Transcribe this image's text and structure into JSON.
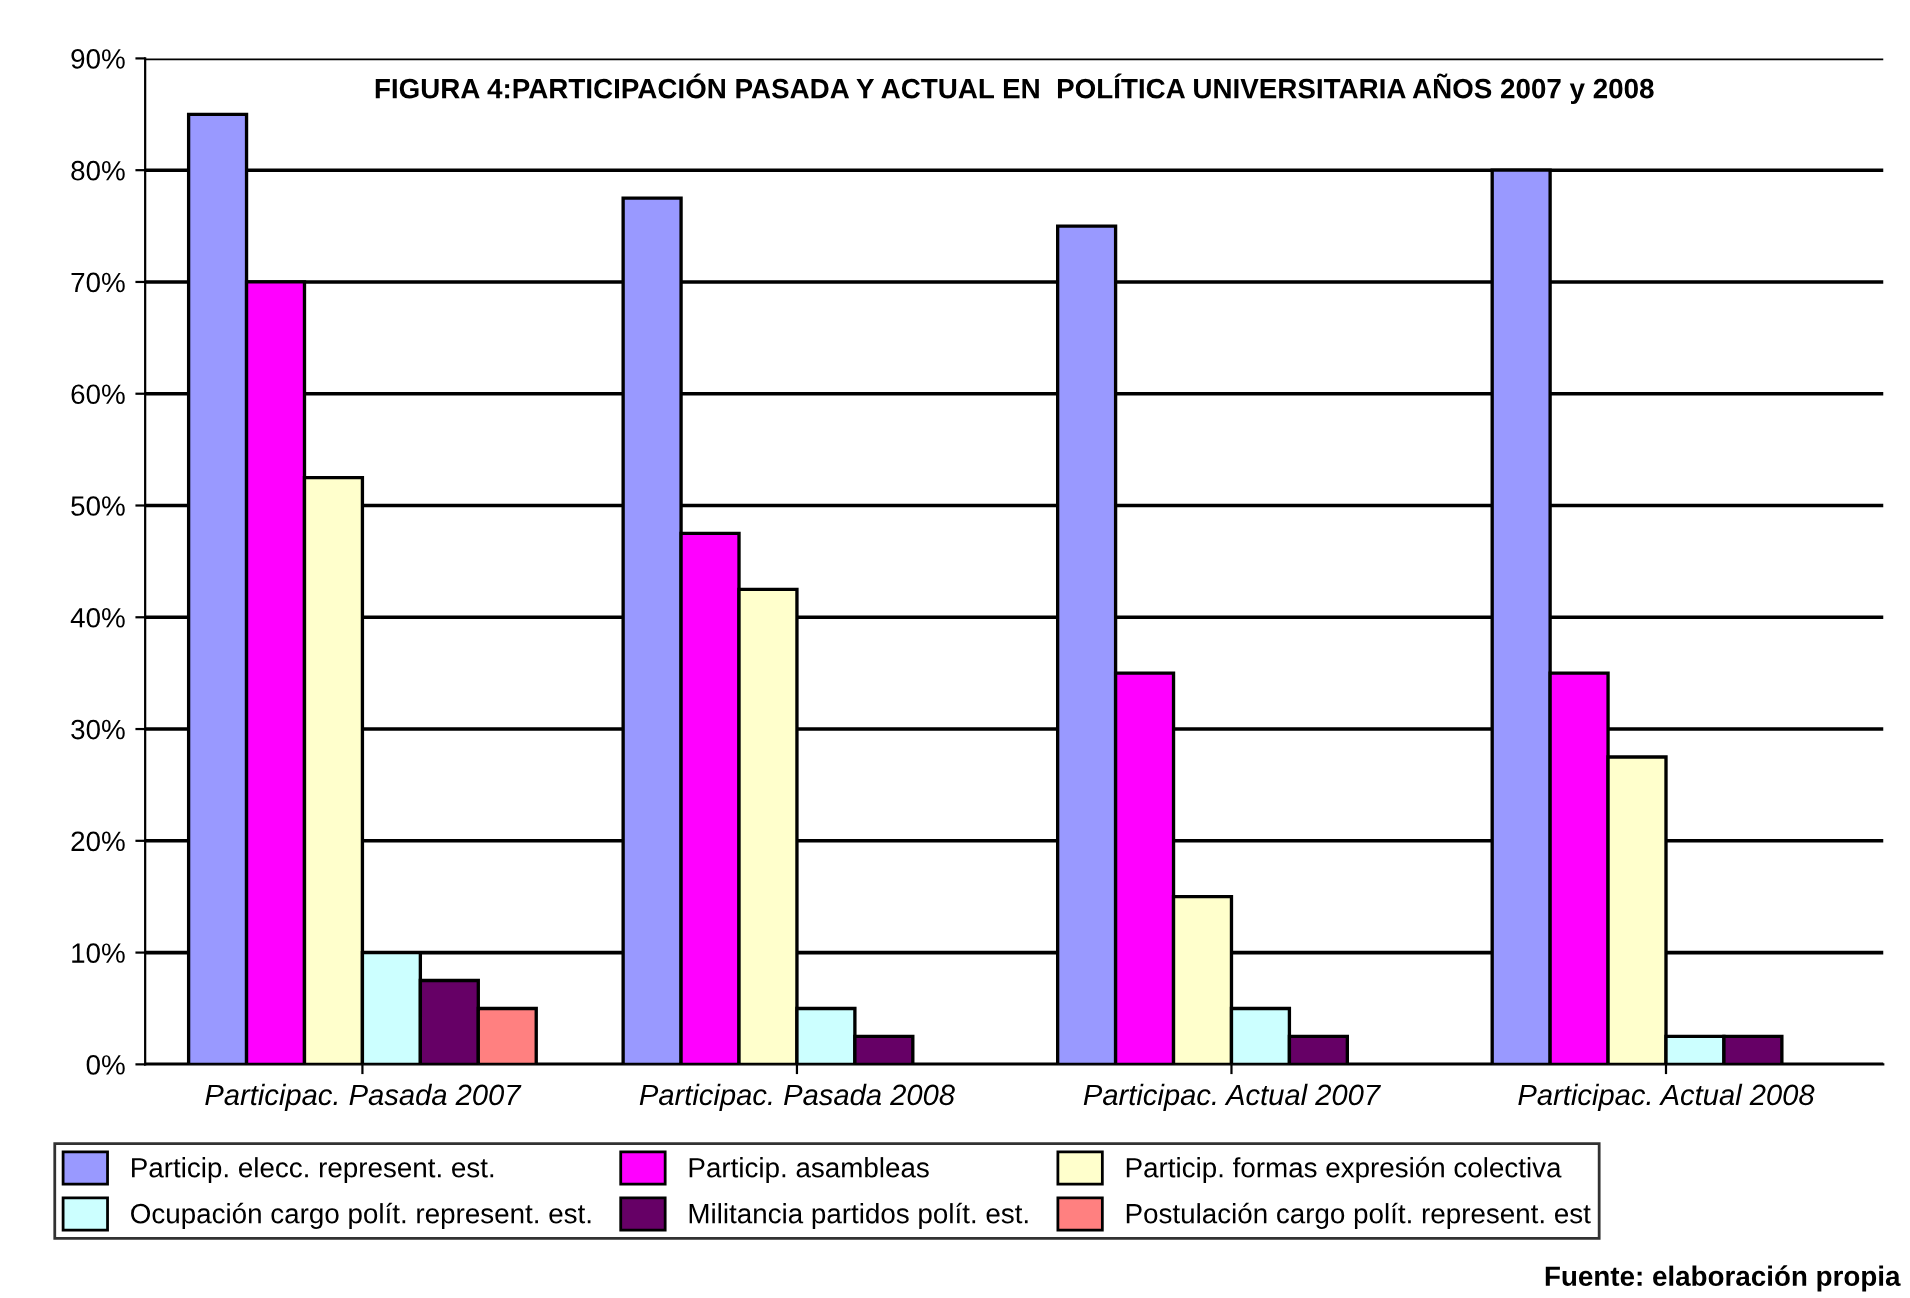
{
  "chart_data": {
    "type": "bar",
    "title": "FIGURA 4:PARTICIPACIÓN PASADA Y ACTUAL EN  POLÍTICA UNIVERSITARIA AÑOS 2007 y 2008",
    "categories": [
      "Participac. Pasada 2007",
      "Participac. Pasada 2008",
      "Participac. Actual 2007",
      "Participac. Actual 2008"
    ],
    "series": [
      {
        "name": "Particip. elecc. represent. est.",
        "color": "#9999ff",
        "values": [
          85,
          77.5,
          75,
          80
        ]
      },
      {
        "name": "Particip. asambleas",
        "color": "#ff00ff",
        "values": [
          70,
          47.5,
          35,
          35
        ]
      },
      {
        "name": "Particip. formas expresión colectiva",
        "color": "#ffffcc",
        "values": [
          52.5,
          42.5,
          15,
          27.5
        ]
      },
      {
        "name": "Ocupación cargo polít. represent. est.",
        "color": "#ccffff",
        "values": [
          10,
          5,
          5,
          2.5
        ]
      },
      {
        "name": "Militancia partidos polít. est.",
        "color": "#660066",
        "values": [
          7.5,
          2.5,
          2.5,
          2.5
        ]
      },
      {
        "name": "Postulación cargo polít. represent. est",
        "color": "#ff8080",
        "values": [
          5,
          null,
          null,
          null
        ]
      }
    ],
    "ylim": [
      0,
      90
    ],
    "yticks": [
      {
        "value": 0,
        "label": "0%"
      },
      {
        "value": 10,
        "label": "10%"
      },
      {
        "value": 20,
        "label": "20%"
      },
      {
        "value": 30,
        "label": "30%"
      },
      {
        "value": 40,
        "label": "40%"
      },
      {
        "value": 50,
        "label": "50%"
      },
      {
        "value": 60,
        "label": "60%"
      },
      {
        "value": 70,
        "label": "70%"
      },
      {
        "value": 80,
        "label": "80%"
      },
      {
        "value": 90,
        "label": "90%"
      }
    ],
    "grid": "y",
    "legend": "bottom",
    "annotations": [
      "Fuente: elaboración propia"
    ]
  }
}
